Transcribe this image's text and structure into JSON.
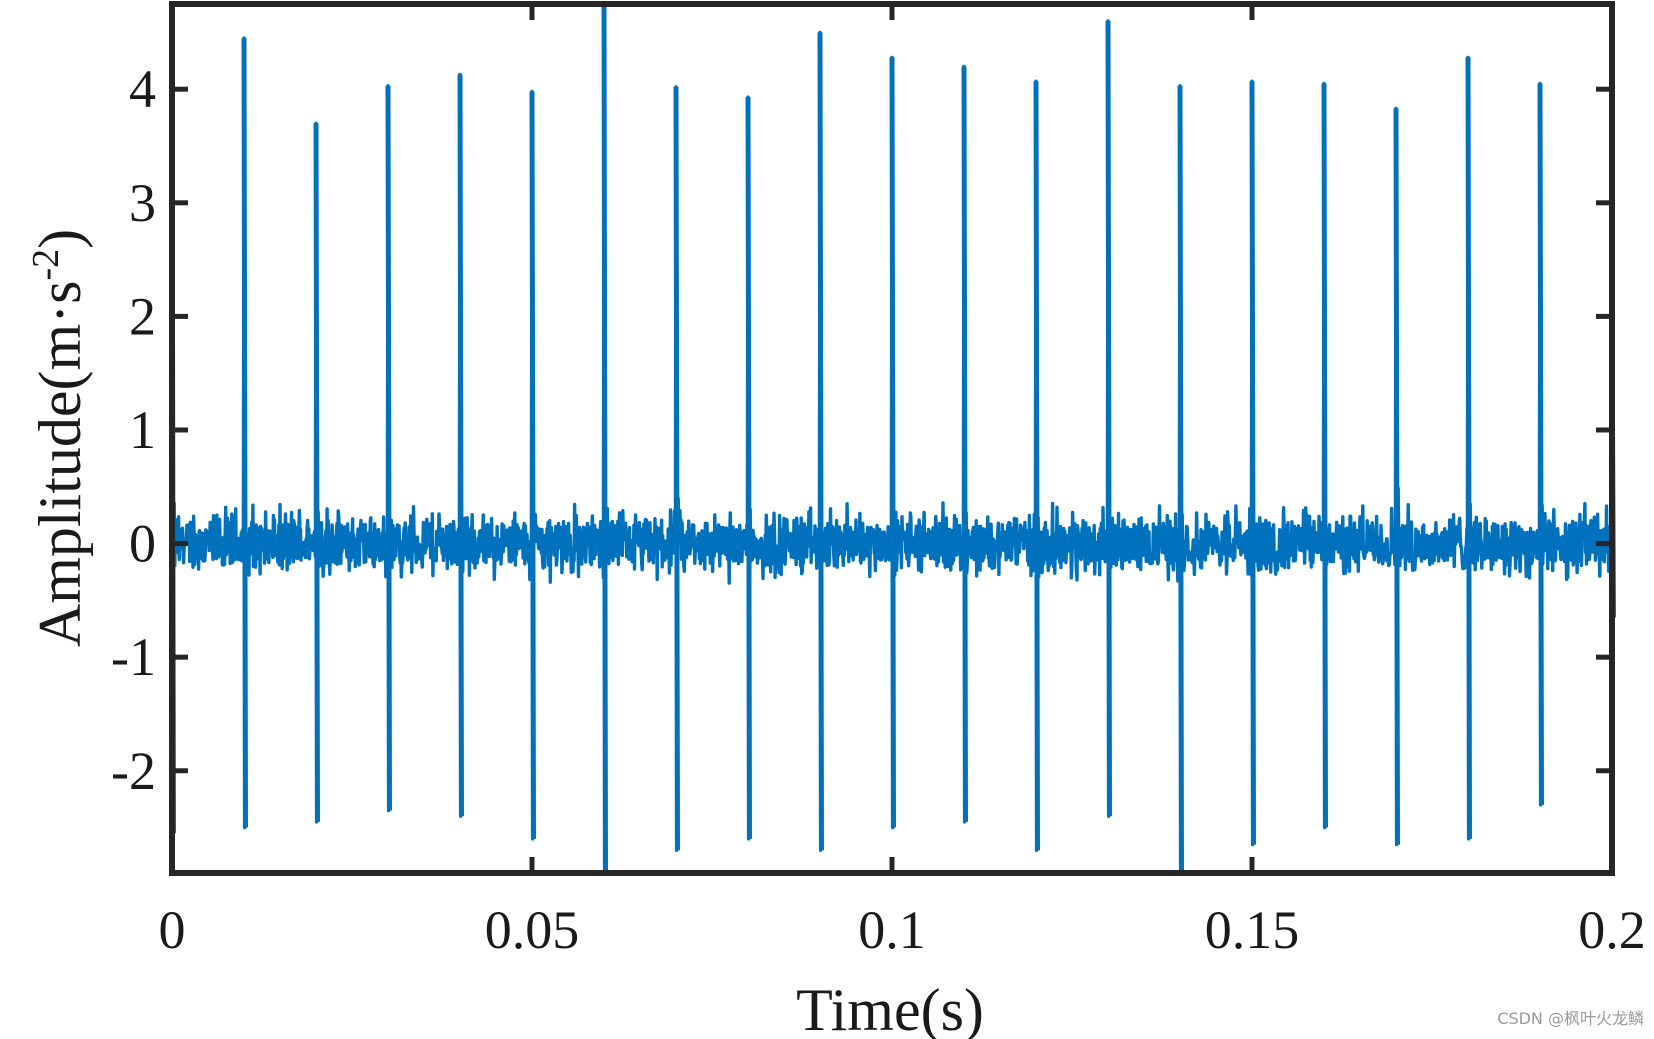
{
  "chart_data": {
    "type": "line",
    "xlabel": "Time(s)",
    "ylabel_main": "Amplitude(m·s",
    "ylabel_sup": "-2",
    "ylabel_close": ")",
    "xlim": [
      0,
      0.2
    ],
    "ylim": [
      -2.9,
      4.75
    ],
    "xticks": [
      0,
      0.05,
      0.1,
      0.15,
      0.2
    ],
    "xtick_labels": [
      "0",
      "0.05",
      "0.1",
      "0.15",
      "0.2"
    ],
    "yticks": [
      -2,
      -1,
      0,
      1,
      2,
      3,
      4
    ],
    "ytick_labels": [
      "-2",
      "-1",
      "0",
      "1",
      "2",
      "3",
      "4"
    ],
    "grid": false,
    "series_color": "#0072BD",
    "axis_color": "#262626",
    "series": [
      {
        "impulses": [
          {
            "t": 0.0,
            "peak": 4.1,
            "trough": -2.55
          },
          {
            "t": 0.01,
            "peak": 4.45,
            "trough": -2.5
          },
          {
            "t": 0.02,
            "peak": 3.7,
            "trough": -2.45
          },
          {
            "t": 0.03,
            "peak": 4.03,
            "trough": -2.35
          },
          {
            "t": 0.04,
            "peak": 4.13,
            "trough": -2.4
          },
          {
            "t": 0.05,
            "peak": 3.98,
            "trough": -2.6
          },
          {
            "t": 0.06,
            "peak": 4.75,
            "trough": -2.9
          },
          {
            "t": 0.07,
            "peak": 4.02,
            "trough": -2.7
          },
          {
            "t": 0.08,
            "peak": 3.93,
            "trough": -2.6
          },
          {
            "t": 0.09,
            "peak": 4.5,
            "trough": -2.7
          },
          {
            "t": 0.1,
            "peak": 4.28,
            "trough": -2.5
          },
          {
            "t": 0.11,
            "peak": 4.2,
            "trough": -2.45
          },
          {
            "t": 0.12,
            "peak": 4.07,
            "trough": -2.7
          },
          {
            "t": 0.13,
            "peak": 4.6,
            "trough": -2.4
          },
          {
            "t": 0.14,
            "peak": 4.03,
            "trough": -2.9
          },
          {
            "t": 0.15,
            "peak": 4.07,
            "trough": -2.65
          },
          {
            "t": 0.16,
            "peak": 4.05,
            "trough": -2.5
          },
          {
            "t": 0.17,
            "peak": 3.83,
            "trough": -2.65
          },
          {
            "t": 0.18,
            "peak": 4.28,
            "trough": -2.6
          },
          {
            "t": 0.19,
            "peak": 4.05,
            "trough": -2.3
          },
          {
            "t": 0.2,
            "peak": 1.9,
            "trough": -0.65
          }
        ],
        "noise_band": [
          -0.4,
          0.45
        ]
      }
    ]
  },
  "watermark": "CSDN @枫叶火龙鳞"
}
